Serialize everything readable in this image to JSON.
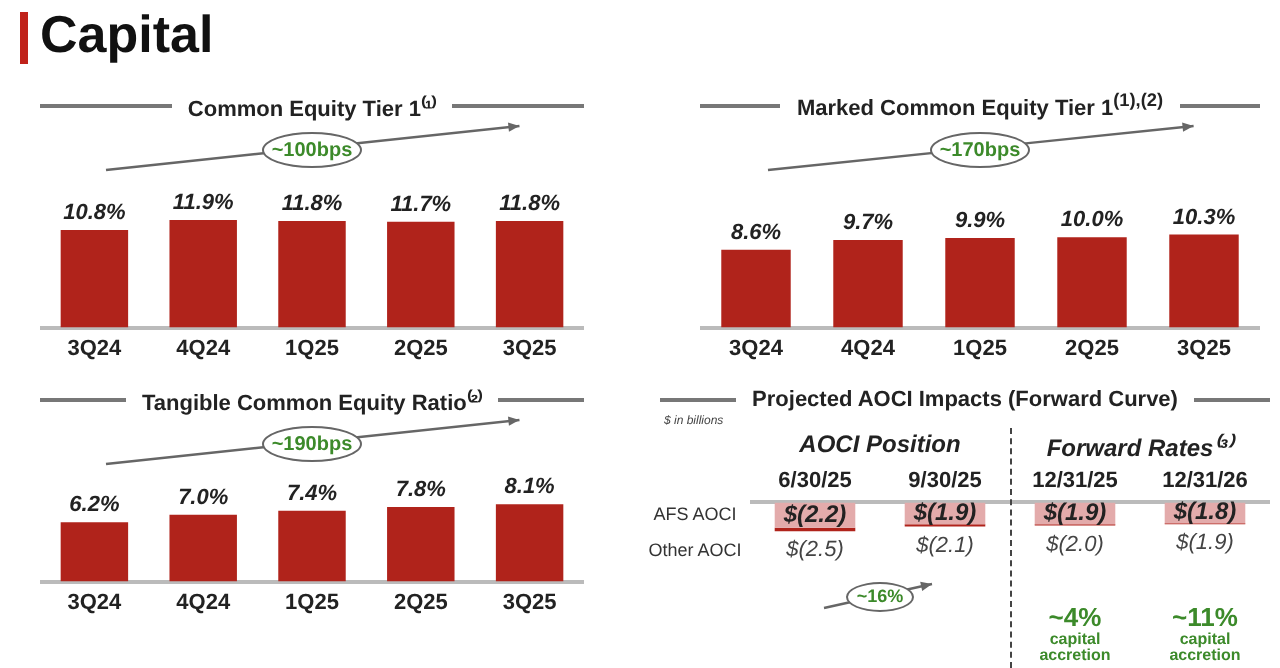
{
  "chart_data": [
    {
      "type": "other",
      "title": "Capital"
    },
    {
      "type": "bar",
      "title": "Common Equity Tier 1⁽¹⁾",
      "categories": [
        "3Q24",
        "4Q24",
        "1Q25",
        "2Q25",
        "3Q25"
      ],
      "values": [
        10.8,
        11.9,
        11.8,
        11.7,
        11.8
      ],
      "value_labels": [
        "10.8%",
        "11.9%",
        "11.8%",
        "11.7%",
        "11.8%"
      ],
      "color": "#b0231b",
      "annotations": [
        "~100bps"
      ]
    },
    {
      "type": "bar",
      "title": "Marked Common Equity Tier 1$^{(1),(2)}$",
      "categories": [
        "3Q24",
        "4Q24",
        "1Q25",
        "2Q25",
        "3Q25"
      ],
      "values": [
        8.6,
        9.7,
        9.9,
        10.0,
        10.3
      ],
      "value_labels": [
        "8.6%",
        "9.7%",
        "9.9%",
        "10.0%",
        "10.3%"
      ],
      "color": "#b0231b",
      "annotations": [
        "~170bps"
      ]
    },
    {
      "type": "bar",
      "title": "Tangible Common Equity Ratio⁽²⁾",
      "categories": [
        "3Q24",
        "4Q24",
        "1Q25",
        "2Q25",
        "3Q25"
      ],
      "values": [
        6.2,
        7.0,
        7.4,
        7.8,
        8.1
      ],
      "value_labels": [
        "6.2%",
        "7.0%",
        "7.4%",
        "7.8%",
        "8.1%"
      ],
      "color": "#b0231b",
      "annotations": [
        "~190bps"
      ]
    },
    {
      "type": "bar",
      "title": "Projected AOCI Impacts (Forward Curve)",
      "subtitle": "$ in billions",
      "categories": [
        "6/30/25",
        "9/30/25",
        "12/31/25",
        "12/31/26"
      ],
      "stacked": true,
      "series": [
        {
          "name": "AFS AOCI",
          "color": "#e3abab",
          "values": [
            -2.2,
            -1.9,
            -1.9,
            -1.8
          ],
          "value_labels": [
            "$(2.2)",
            "$(1.9)",
            "$(1.9)",
            "$(1.8)"
          ]
        },
        {
          "name": "Other AOCI",
          "color": "#b0231b",
          "values": [
            -0.3,
            -0.2,
            -0.1,
            -0.1
          ]
        }
      ],
      "totals": [
        "$(2.5)",
        "$(2.1)",
        "$(2.0)",
        "$(1.9)"
      ],
      "annotations": [
        "AOCI Position",
        "Forward Rates⁽³⁾",
        "~16%",
        "~4%",
        "capital accretion",
        "~11%",
        "capital accretion"
      ]
    }
  ]
}
